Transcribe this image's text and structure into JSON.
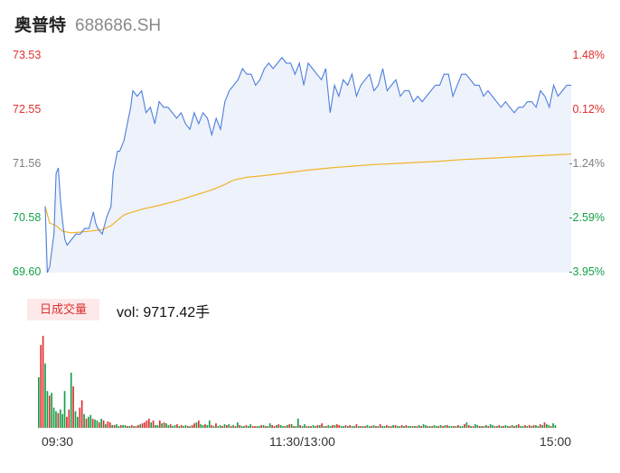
{
  "header": {
    "name": "奥普特",
    "code": "688686.SH"
  },
  "volume_panel": {
    "tag": "日成交量",
    "vol_label": "vol: 9717.42手"
  },
  "x_labels": [
    "09:30",
    "11:30/13:00",
    "15:00"
  ],
  "colors": {
    "up": "#e03030",
    "down": "#15a04a",
    "price_line": "#4d7fdc",
    "avg_line": "#f0b429",
    "fill": "#eef2fb"
  },
  "chart_data": [
    {
      "type": "line",
      "title": "",
      "price_ticks": [
        "73.53",
        "72.55",
        "71.56",
        "70.58",
        "69.60"
      ],
      "pct_ticks": [
        "1.48%",
        "0.12%",
        "-1.24%",
        "-2.59%",
        "-3.95%"
      ],
      "ylim": [
        69.6,
        73.53
      ],
      "x_range": [
        0,
        240
      ],
      "price": [
        [
          0,
          70.8
        ],
        [
          1,
          69.6
        ],
        [
          2,
          69.7
        ],
        [
          4,
          70.3
        ],
        [
          5,
          71.4
        ],
        [
          6,
          71.5
        ],
        [
          7,
          70.9
        ],
        [
          8,
          70.5
        ],
        [
          9,
          70.2
        ],
        [
          10,
          70.1
        ],
        [
          12,
          70.2
        ],
        [
          14,
          70.3
        ],
        [
          16,
          70.3
        ],
        [
          18,
          70.4
        ],
        [
          20,
          70.4
        ],
        [
          22,
          70.7
        ],
        [
          23,
          70.5
        ],
        [
          24,
          70.4
        ],
        [
          26,
          70.3
        ],
        [
          28,
          70.6
        ],
        [
          30,
          70.8
        ],
        [
          31,
          71.4
        ],
        [
          32,
          71.6
        ],
        [
          33,
          71.8
        ],
        [
          34,
          71.8
        ],
        [
          36,
          72.0
        ],
        [
          38,
          72.4
        ],
        [
          39,
          72.6
        ],
        [
          40,
          72.9
        ],
        [
          42,
          72.8
        ],
        [
          44,
          72.9
        ],
        [
          46,
          72.5
        ],
        [
          48,
          72.6
        ],
        [
          50,
          72.3
        ],
        [
          52,
          72.7
        ],
        [
          54,
          72.6
        ],
        [
          56,
          72.6
        ],
        [
          58,
          72.5
        ],
        [
          60,
          72.4
        ],
        [
          62,
          72.5
        ],
        [
          64,
          72.3
        ],
        [
          66,
          72.2
        ],
        [
          68,
          72.5
        ],
        [
          70,
          72.3
        ],
        [
          72,
          72.5
        ],
        [
          74,
          72.4
        ],
        [
          76,
          72.1
        ],
        [
          78,
          72.4
        ],
        [
          80,
          72.2
        ],
        [
          82,
          72.7
        ],
        [
          84,
          72.9
        ],
        [
          86,
          73.0
        ],
        [
          88,
          73.1
        ],
        [
          90,
          73.3
        ],
        [
          92,
          73.2
        ],
        [
          94,
          73.2
        ],
        [
          96,
          73.0
        ],
        [
          98,
          73.1
        ],
        [
          100,
          73.3
        ],
        [
          102,
          73.4
        ],
        [
          104,
          73.3
        ],
        [
          106,
          73.4
        ],
        [
          108,
          73.5
        ],
        [
          110,
          73.4
        ],
        [
          112,
          73.4
        ],
        [
          114,
          73.2
        ],
        [
          116,
          73.4
        ],
        [
          118,
          73.0
        ],
        [
          120,
          73.4
        ],
        [
          122,
          73.3
        ],
        [
          124,
          73.2
        ],
        [
          126,
          73.1
        ],
        [
          128,
          73.3
        ],
        [
          130,
          72.5
        ],
        [
          132,
          73.0
        ],
        [
          134,
          72.8
        ],
        [
          136,
          73.1
        ],
        [
          138,
          73.0
        ],
        [
          140,
          73.2
        ],
        [
          142,
          72.8
        ],
        [
          144,
          73.0
        ],
        [
          146,
          73.1
        ],
        [
          148,
          73.2
        ],
        [
          150,
          72.9
        ],
        [
          152,
          73.0
        ],
        [
          154,
          73.3
        ],
        [
          156,
          72.9
        ],
        [
          158,
          73.0
        ],
        [
          160,
          73.1
        ],
        [
          162,
          72.8
        ],
        [
          164,
          72.9
        ],
        [
          166,
          72.9
        ],
        [
          168,
          72.7
        ],
        [
          170,
          72.8
        ],
        [
          172,
          72.7
        ],
        [
          174,
          72.8
        ],
        [
          176,
          72.9
        ],
        [
          178,
          73.0
        ],
        [
          180,
          73.0
        ],
        [
          182,
          73.2
        ],
        [
          184,
          73.2
        ],
        [
          186,
          72.8
        ],
        [
          188,
          73.0
        ],
        [
          190,
          73.2
        ],
        [
          192,
          73.2
        ],
        [
          194,
          73.1
        ],
        [
          196,
          73.0
        ],
        [
          198,
          73.0
        ],
        [
          200,
          72.8
        ],
        [
          202,
          72.9
        ],
        [
          204,
          72.8
        ],
        [
          206,
          72.7
        ],
        [
          208,
          72.6
        ],
        [
          210,
          72.7
        ],
        [
          212,
          72.6
        ],
        [
          214,
          72.5
        ],
        [
          216,
          72.6
        ],
        [
          218,
          72.6
        ],
        [
          220,
          72.7
        ],
        [
          222,
          72.7
        ],
        [
          224,
          72.6
        ],
        [
          226,
          72.9
        ],
        [
          228,
          72.8
        ],
        [
          230,
          72.6
        ],
        [
          232,
          73.0
        ],
        [
          234,
          72.8
        ],
        [
          236,
          72.9
        ],
        [
          238,
          73.0
        ],
        [
          240,
          73.0
        ]
      ],
      "avg_price": [
        [
          0,
          70.8
        ],
        [
          2,
          70.5
        ],
        [
          5,
          70.45
        ],
        [
          8,
          70.35
        ],
        [
          12,
          70.32
        ],
        [
          20,
          70.35
        ],
        [
          26,
          70.38
        ],
        [
          30,
          70.45
        ],
        [
          36,
          70.65
        ],
        [
          44,
          70.75
        ],
        [
          52,
          70.82
        ],
        [
          60,
          70.9
        ],
        [
          68,
          71.0
        ],
        [
          76,
          71.1
        ],
        [
          82,
          71.2
        ],
        [
          86,
          71.28
        ],
        [
          92,
          71.33
        ],
        [
          100,
          71.36
        ],
        [
          110,
          71.41
        ],
        [
          120,
          71.46
        ],
        [
          130,
          71.5
        ],
        [
          140,
          71.53
        ],
        [
          150,
          71.56
        ],
        [
          160,
          71.58
        ],
        [
          170,
          71.6
        ],
        [
          180,
          71.62
        ],
        [
          190,
          71.65
        ],
        [
          200,
          71.67
        ],
        [
          210,
          71.69
        ],
        [
          220,
          71.71
        ],
        [
          230,
          71.73
        ],
        [
          240,
          71.75
        ]
      ]
    },
    {
      "type": "bar",
      "title": "",
      "ylim": [
        0,
        100
      ],
      "series": [
        {
          "values": [
            55,
            90,
            100,
            70,
            40,
            35,
            38,
            22,
            18,
            16,
            20,
            15,
            40,
            12,
            20,
            60,
            45,
            18,
            12,
            22,
            30,
            15,
            10,
            12,
            14,
            10,
            9,
            8,
            6,
            10,
            8,
            4,
            7,
            6,
            3,
            3,
            4,
            2,
            3,
            3,
            3,
            2,
            2,
            3,
            2,
            2,
            3,
            4,
            5,
            6,
            8,
            10,
            6,
            8,
            3,
            3,
            8,
            5,
            6,
            5,
            3,
            4,
            2,
            3,
            4,
            2,
            3,
            2,
            3,
            2,
            2,
            3,
            5,
            6,
            8,
            4,
            3,
            4,
            3,
            8,
            3,
            2,
            5,
            2,
            3,
            2,
            4,
            3,
            4,
            2,
            3,
            2,
            6,
            3,
            2,
            2,
            3,
            2,
            4,
            2,
            2,
            2,
            2,
            3,
            3,
            2,
            2,
            5,
            3,
            2,
            3,
            4,
            3,
            2,
            2,
            3,
            4,
            4,
            2,
            2,
            10,
            3,
            2,
            4,
            2,
            2,
            2,
            3,
            2,
            3,
            3,
            5,
            2,
            2,
            3,
            2,
            3,
            3,
            4,
            3,
            2,
            2,
            3,
            2,
            3,
            2,
            2,
            4,
            2,
            2,
            2,
            2,
            3,
            2,
            2,
            3,
            2,
            2,
            4,
            2,
            2,
            3,
            2,
            2,
            3,
            3,
            2,
            2,
            3,
            2,
            3,
            2,
            2,
            2,
            2,
            2,
            3,
            2,
            4,
            3,
            2,
            2,
            2,
            3,
            2,
            2,
            3,
            2,
            3,
            3,
            2,
            2,
            2,
            2,
            3,
            2,
            2,
            4,
            6,
            3,
            2,
            2,
            4,
            3,
            2,
            2,
            2,
            3,
            2,
            4,
            3,
            2,
            2,
            3,
            2,
            2,
            3,
            2,
            2,
            3,
            2,
            3,
            4,
            2,
            2,
            3,
            2,
            3,
            2,
            3,
            3,
            2,
            4,
            3,
            6,
            4,
            3,
            2,
            5,
            3
          ],
          "up": [
            0,
            1,
            1,
            0,
            0,
            1,
            0,
            0,
            0,
            1,
            0,
            0,
            0,
            1,
            1,
            0,
            1,
            0,
            0,
            1,
            1,
            0,
            1,
            0,
            0,
            1,
            0,
            0,
            1,
            0,
            1,
            0,
            1,
            1,
            0,
            1,
            0,
            0,
            1,
            0,
            0,
            1,
            0,
            1,
            0,
            1,
            1,
            0,
            1,
            1,
            1,
            1,
            0,
            1,
            0,
            0,
            1,
            0,
            1,
            0,
            0,
            1,
            0,
            0,
            1,
            0,
            1,
            0,
            0,
            1,
            0,
            1,
            1,
            0,
            1,
            0,
            0,
            1,
            0,
            0,
            1,
            0,
            1,
            0,
            0,
            1,
            0,
            1,
            0,
            1,
            0,
            1,
            0,
            1,
            0,
            0,
            1,
            0,
            0,
            1,
            1,
            0,
            0,
            1,
            0,
            1,
            0,
            0,
            1,
            1,
            0,
            1,
            0,
            0,
            1,
            0,
            1,
            0,
            1,
            0,
            0,
            1,
            0,
            0,
            1,
            0,
            1,
            0,
            0,
            1,
            0,
            1,
            0,
            1,
            0,
            0,
            1,
            0,
            1,
            1,
            0,
            0,
            1,
            0,
            1,
            0,
            0,
            1,
            0,
            1,
            0,
            1,
            0,
            0,
            1,
            0,
            1,
            0,
            1,
            0,
            0,
            1,
            0,
            1,
            0,
            1,
            0,
            0,
            1,
            0,
            1,
            0,
            0,
            1,
            0,
            1,
            0,
            1,
            0,
            0,
            1,
            0,
            1,
            0,
            0,
            1,
            0,
            1,
            0,
            1,
            0,
            0,
            1,
            0,
            1,
            0,
            0,
            1,
            0,
            1,
            0,
            1,
            0,
            0,
            1,
            0,
            1,
            0,
            1,
            0,
            0,
            1,
            0,
            1,
            0,
            1,
            0,
            0,
            1,
            0,
            1,
            0,
            1,
            0,
            0,
            1,
            0,
            1,
            0,
            1,
            0,
            0,
            1,
            0,
            1,
            0,
            0,
            1,
            0,
            0
          ]
        }
      ]
    }
  ]
}
